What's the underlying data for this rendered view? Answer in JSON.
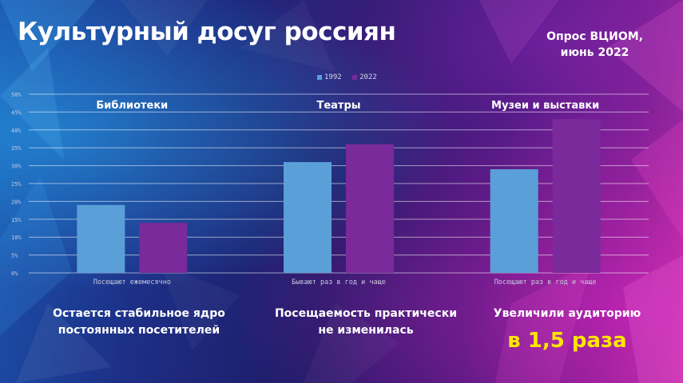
{
  "header": {
    "title": "Культурный досуг россиян",
    "source_line1": "Опрос ВЦИОМ,",
    "source_line2": "июнь 2022"
  },
  "colors": {
    "series_1992": "#5a9fd8",
    "series_2022": "#7a2a9a",
    "highlight": "#ffe600"
  },
  "chart_data": {
    "type": "bar",
    "categories": [
      "Библиотеки",
      "Театры",
      "Музеи и выставки"
    ],
    "x_tick_labels": [
      "Посещают ежемесячно",
      "Бывают раз в год и чаще",
      "Посещают раз в год и чаще"
    ],
    "series": [
      {
        "name": "1992",
        "values": [
          19,
          31,
          29
        ]
      },
      {
        "name": "2022",
        "values": [
          14,
          36,
          43
        ]
      }
    ],
    "ylim": [
      0,
      50
    ],
    "y_ticks": [
      "0%",
      "5%",
      "10%",
      "15%",
      "20%",
      "25%",
      "30%",
      "35%",
      "40%",
      "45%",
      "50%"
    ],
    "grid": true,
    "legend_position": "top-center"
  },
  "notes": [
    {
      "line1": "Остается стабильное ядро",
      "line2": "постоянных посетителей"
    },
    {
      "line1": "Посещаемость практически",
      "line2": "не изменилась"
    },
    {
      "line1": "Увеличили аудиторию",
      "line2": ""
    }
  ],
  "highlight": "в 1,5 раза"
}
